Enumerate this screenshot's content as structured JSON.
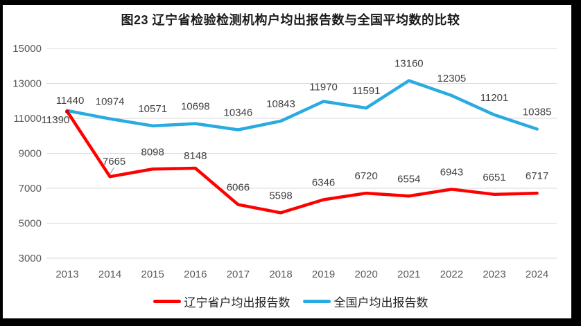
{
  "chart_data": {
    "type": "line",
    "title": "图23 辽宁省检验检测机构户均出报告数与全国平均数的比较",
    "categories": [
      "2013",
      "2014",
      "2015",
      "2016",
      "2017",
      "2018",
      "2019",
      "2020",
      "2021",
      "2022",
      "2023",
      "2024"
    ],
    "series": [
      {
        "name": "辽宁省户均出报告数",
        "color": "#FF0000",
        "values": [
          11390,
          7665,
          8098,
          8148,
          6066,
          5598,
          6346,
          6720,
          6554,
          6943,
          6651,
          6717
        ]
      },
      {
        "name": "全国户均出报告数",
        "color": "#29ABE2",
        "values": [
          11440,
          10974,
          10571,
          10698,
          10346,
          10843,
          11970,
          11591,
          13160,
          12305,
          11201,
          10385
        ]
      }
    ],
    "yticks": [
      15000,
      13000,
      11000,
      9000,
      7000,
      5000,
      3000
    ],
    "ylim": [
      3000,
      15000
    ],
    "ytick_step": 2000,
    "xlabel": "",
    "ylabel": "",
    "grid": true,
    "data_labels": true,
    "legend_position": "bottom"
  },
  "style": {
    "grid_color": "#d9d9d9",
    "tick_color": "#595959",
    "data_label_color": "#404040",
    "frame_color": "#000000"
  }
}
